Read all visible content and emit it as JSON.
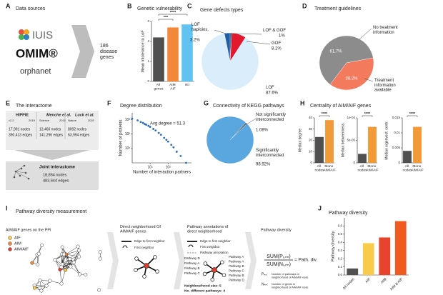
{
  "panel_labels": [
    "A",
    "B",
    "C",
    "D",
    "E",
    "F",
    "G",
    "H",
    "I",
    "J"
  ],
  "panels": {
    "A": {
      "title": "Data sources",
      "sources": [
        "IUIS",
        "OMIM®",
        "orphanet"
      ],
      "result": "186 disease genes"
    },
    "E": {
      "title": "The interactome",
      "sources": [
        {
          "name": "HIPPIE",
          "version": "v2.2",
          "year": "2019",
          "nodes": "17,991 nodes",
          "edges": "390,413 edges"
        },
        {
          "name": "Menche et al.",
          "version": "Science",
          "year": "2015",
          "nodes": "13,460 nodes",
          "edges": "141,296 edges"
        },
        {
          "name": "Luck et al.",
          "version": "Nature",
          "year": "2020",
          "nodes": "8092 nodes",
          "edges": "63,994 edges"
        }
      ],
      "joint": {
        "name": "Joint interactome",
        "nodes": "18,854 nodes",
        "edges": "483,644 edges"
      }
    },
    "H": {
      "title": "Centrality of AIM/AIF genes"
    },
    "I": {
      "title": "Pathway diversity measurement",
      "network": {
        "title": "AIM/AIF genes on the PPI",
        "legend": [
          "AIF",
          "AIM",
          "AIM/AIF"
        ]
      },
      "neighborhood": {
        "title": "Direct neighborhood Of AIM/AIF genes",
        "legend": [
          "Edge to first neighbor",
          "First neighbor"
        ]
      },
      "annotations": {
        "title": "Pathway annotations of direct neighborhood",
        "legend": [
          "Edge to first neighbor",
          "First neighbor",
          "Pathway annotation"
        ],
        "left": [
          "Pathway D",
          "Pathway A",
          "Pathway B",
          "Pathway C"
        ],
        "right": [
          "Pathway A",
          "Pathway A",
          "Pathway B",
          "Pathway C",
          "Pathway B",
          "Pathway D"
        ],
        "size": "Neighbourhood size: 5",
        "count": "No. different pathways: 4"
      },
      "diversity": {
        "title": "Pathway diversity",
        "numerator": "SUM(Pᵢ,ₙₙ)",
        "denominator": "SUM(Nᵢ,ₙₙ)",
        "result": "= Path. div.",
        "p_symbol": "Pₙₙ:",
        "p_text": "Number of pathways in neighborhood of AIM/AIF node",
        "n_symbol": "Nₙₙ:",
        "n_text": "Number of genes in neighborhood of AIM/AIF node"
      }
    }
  },
  "chart_data": [
    {
      "type": "bar",
      "title": "Genetic vulnerability",
      "y_label": "Mean intolerance to LoF",
      "categories": [
        "All genes",
        "AIM AIF",
        "IEI"
      ],
      "values": [
        2.2,
        2.7,
        2.85
      ],
      "colors": [
        "#505050",
        "#f2893a",
        "#62c3f2"
      ],
      "ylim": [
        0,
        3
      ],
      "yticks": [
        0,
        1,
        2,
        3
      ],
      "annotations": [
        "***",
        "****"
      ]
    },
    {
      "type": "pie",
      "title": "Gene defects types",
      "categories": [
        "LOF & GOF",
        "GOF",
        "LOF",
        "LOF haploins."
      ],
      "values": [
        1,
        8.1,
        87.6,
        3.2
      ],
      "value_labels": [
        "1%",
        "8.1%",
        "87.6%",
        "3.2%"
      ],
      "colors": [
        "#17375e",
        "#e3182d",
        "#d9eefa",
        "#1f5fa8"
      ]
    },
    {
      "type": "pie",
      "title": "Treatment guidelines",
      "categories": [
        "No treatment information",
        "Treatment information available"
      ],
      "values": [
        61.7,
        38.2
      ],
      "value_labels": [
        "61.7%",
        "38.2%"
      ],
      "colors": [
        "#8c8c8c",
        "#f47a5e"
      ]
    },
    {
      "type": "scatter",
      "title": "Degree distribution",
      "x_label": "Number of interaction partners",
      "y_label": "Number of proteins",
      "annotation": "Avg degree = 51.3",
      "log_x": true,
      "log_y": true,
      "color": "#2e6db4",
      "x": [
        1,
        2,
        3,
        4,
        5,
        6,
        8,
        10,
        15,
        20,
        30,
        40,
        60,
        80,
        100,
        150,
        200,
        300,
        500,
        1000
      ],
      "values": [
        1200,
        900,
        700,
        600,
        500,
        450,
        380,
        320,
        230,
        180,
        120,
        90,
        55,
        40,
        30,
        18,
        12,
        6,
        3,
        1
      ],
      "xlim": [
        1,
        2000
      ],
      "ylim": [
        1,
        3000
      ],
      "xticks": [
        {
          "value": 10,
          "label": "10¹"
        },
        {
          "value": 100,
          "label": "10²"
        }
      ],
      "yticks": [
        {
          "value": 10,
          "label": "10¹"
        },
        {
          "value": 100,
          "label": "10²"
        },
        {
          "value": 1000,
          "label": "10³"
        }
      ]
    },
    {
      "type": "pie",
      "title": "Connectivity of KEGG pathways",
      "categories": [
        "Not significantly interconnected",
        "Significantly interconnected"
      ],
      "values": [
        1.08,
        98.92
      ],
      "value_labels": [
        "1.08%",
        "98.92%"
      ],
      "colors": [
        "#555555",
        "#5aa6de"
      ]
    },
    {
      "type": "bar",
      "y_label": "Median degree",
      "categories": [
        "All nodes",
        "Mono AIM/AIF"
      ],
      "values": [
        23,
        38
      ],
      "colors": [
        "#505050",
        "#f29a38"
      ],
      "ylim": [
        0,
        40
      ],
      "yticks": [
        0,
        10,
        20,
        30,
        40
      ],
      "annotations": [
        "****"
      ]
    },
    {
      "type": "bar",
      "y_label": "Median betweenness",
      "categories": [
        "All nodes",
        "Mono AIM/AIF"
      ],
      "values": [
        2e-05,
        8e-05
      ],
      "colors": [
        "#505050",
        "#f29a38"
      ],
      "ylim": [
        0,
        0.0001
      ],
      "yticks": [
        0,
        {
          "value": 5e-05,
          "label": "5e-05"
        },
        {
          "value": 0.0001,
          "label": "1e-04"
        }
      ],
      "annotations": [
        "****"
      ]
    },
    {
      "type": "bar",
      "y_label": "Median eigenvect. centr.",
      "categories": [
        "All nodes",
        "Mono AIM/AIF"
      ],
      "values": [
        0.004,
        0.012
      ],
      "colors": [
        "#505050",
        "#f29a38"
      ],
      "ylim": [
        0,
        0.015
      ],
      "yticks": [
        0,
        0.005,
        0.01,
        0.015
      ],
      "annotations": [
        "****"
      ]
    },
    {
      "type": "bar",
      "title": "Pathway diversity",
      "y_label": "Pathway diversity",
      "categories": [
        "All nodes",
        "AIF",
        "AIM",
        "AIM & AIF"
      ],
      "values": [
        0.08,
        0.39,
        0.46,
        0.66
      ],
      "colors": [
        "#505050",
        "#f8cc4a",
        "#e8442d",
        "#ef5a1f"
      ],
      "ylim": [
        0,
        0.7
      ],
      "yticks": [
        {
          "value": 0,
          "label": "0.0"
        },
        0.1,
        0.2,
        0.3,
        0.4,
        0.5,
        0.6
      ]
    }
  ]
}
